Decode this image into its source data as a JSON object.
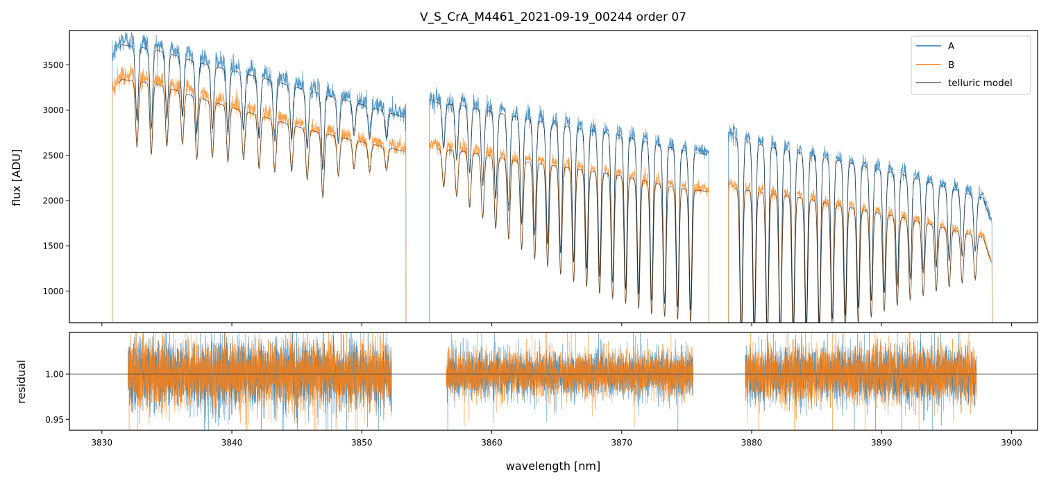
{
  "figure": {
    "title": "V_S_CrA_M4461_2021-09-19_00244  order 07"
  },
  "colors": {
    "A": "#1f77b4",
    "B": "#ff7f0e",
    "model": "#000000",
    "axes": "#000000",
    "hline": "#555555"
  },
  "chart_data": [
    {
      "type": "line",
      "id": "flux",
      "ylabel": "flux [ADU]",
      "xlim": [
        3827.5,
        3902
      ],
      "ylim": [
        650,
        3880
      ],
      "yticks": [
        1000,
        1500,
        2000,
        2500,
        3000,
        3500
      ],
      "ytick_labels": [
        "1000",
        "1500",
        "2000",
        "2500",
        "3000",
        "3500"
      ],
      "xticks": [
        3830,
        3840,
        3850,
        3860,
        3870,
        3880,
        3890,
        3900
      ],
      "legend": {
        "position": "top-right",
        "entries": [
          "A",
          "B",
          "telluric model"
        ]
      },
      "segments": [
        {
          "range": [
            3830.8,
            3853.4
          ],
          "A_anchor": [
            [
              3830.8,
              3600
            ],
            [
              3831.5,
              3780
            ],
            [
              3834,
              3730
            ],
            [
              3838,
              3560
            ],
            [
              3842,
              3420
            ],
            [
              3846,
              3260
            ],
            [
              3850,
              3110
            ],
            [
              3853.4,
              2960
            ]
          ],
          "B_anchor": [
            [
              3830.8,
              3230
            ],
            [
              3831.5,
              3390
            ],
            [
              3834,
              3350
            ],
            [
              3838,
              3160
            ],
            [
              3842,
              2990
            ],
            [
              3846,
              2820
            ],
            [
              3850,
              2690
            ],
            [
              3853.4,
              2580
            ]
          ],
          "lines": [
            3832.7,
            3833.8,
            3835.0,
            3836.2,
            3837.3,
            3838.5,
            3839.7,
            3840.9,
            3842.1,
            3843.3,
            3844.6,
            3845.8,
            3847.0,
            3848.2,
            3849.4,
            3850.6,
            3851.9
          ],
          "depth": [
            0.22,
            0.24,
            0.2,
            0.18,
            0.22,
            0.2,
            0.2,
            0.18,
            0.2,
            0.2,
            0.18,
            0.2,
            0.26,
            0.16,
            0.12,
            0.12,
            0.1
          ]
        },
        {
          "range": [
            3855.2,
            3876.7
          ],
          "A_anchor": [
            [
              3855.2,
              3140
            ],
            [
              3858,
              3090
            ],
            [
              3862,
              2970
            ],
            [
              3866,
              2860
            ],
            [
              3870,
              2760
            ],
            [
              3874,
              2620
            ],
            [
              3876.7,
              2540
            ]
          ],
          "B_anchor": [
            [
              3855.2,
              2620
            ],
            [
              3858,
              2580
            ],
            [
              3862,
              2480
            ],
            [
              3866,
              2400
            ],
            [
              3870,
              2310
            ],
            [
              3874,
              2180
            ],
            [
              3876.7,
              2130
            ]
          ],
          "lines": [
            3856.3,
            3857.3,
            3858.3,
            3859.3,
            3860.3,
            3861.3,
            3862.3,
            3863.3,
            3864.3,
            3865.3,
            3866.3,
            3867.3,
            3868.3,
            3869.3,
            3870.3,
            3871.3,
            3872.3,
            3873.3,
            3874.3,
            3875.3
          ],
          "depth": [
            0.16,
            0.2,
            0.24,
            0.28,
            0.32,
            0.36,
            0.4,
            0.44,
            0.47,
            0.5,
            0.53,
            0.55,
            0.58,
            0.6,
            0.62,
            0.64,
            0.66,
            0.67,
            0.68,
            0.69
          ]
        },
        {
          "range": [
            3878.2,
            3898.5
          ],
          "A_anchor": [
            [
              3878.2,
              2760
            ],
            [
              3880,
              2680
            ],
            [
              3884,
              2560
            ],
            [
              3888,
              2440
            ],
            [
              3892,
              2310
            ],
            [
              3896,
              2140
            ],
            [
              3897.8,
              2060
            ],
            [
              3898.5,
              1760
            ]
          ],
          "B_anchor": [
            [
              3878.2,
              2180
            ],
            [
              3880,
              2140
            ],
            [
              3884,
              2060
            ],
            [
              3888,
              1940
            ],
            [
              3892,
              1830
            ],
            [
              3896,
              1680
            ],
            [
              3897.8,
              1620
            ],
            [
              3898.5,
              1300
            ]
          ],
          "lines": [
            3879.2,
            3880.2,
            3881.2,
            3882.2,
            3883.2,
            3884.2,
            3885.2,
            3886.2,
            3887.2,
            3888.2,
            3889.2,
            3890.2,
            3891.2,
            3892.2,
            3893.2,
            3894.2,
            3895.2,
            3896.2,
            3897.2
          ],
          "depth": [
            0.8,
            0.8,
            0.8,
            0.78,
            0.78,
            0.76,
            0.74,
            0.72,
            0.7,
            0.66,
            0.62,
            0.58,
            0.54,
            0.5,
            0.46,
            0.42,
            0.38,
            0.34,
            0.3
          ]
        }
      ],
      "series": [
        {
          "name": "A",
          "color_key": "A"
        },
        {
          "name": "B",
          "color_key": "B"
        },
        {
          "name": "telluric model",
          "color_key": "model"
        }
      ]
    },
    {
      "type": "line",
      "id": "residual",
      "ylabel": "residual",
      "xlabel": "wavelength [nm]",
      "xlim": [
        3827.5,
        3902
      ],
      "ylim": [
        0.938,
        1.046
      ],
      "yticks": [
        0.95,
        1.0
      ],
      "ytick_labels": [
        "0.95",
        "1.00"
      ],
      "xticks": [
        3830,
        3840,
        3850,
        3860,
        3870,
        3880,
        3890,
        3900
      ],
      "xtick_labels": [
        "3830",
        "3840",
        "3850",
        "3860",
        "3870",
        "3880",
        "3890",
        "3900"
      ],
      "hline": 1.0,
      "segments": [
        {
          "range": [
            3832.0,
            3852.3
          ],
          "sigma": 0.018
        },
        {
          "range": [
            3856.5,
            3875.5
          ],
          "sigma": 0.012
        },
        {
          "range": [
            3879.5,
            3897.3
          ],
          "sigma": 0.015
        }
      ]
    }
  ]
}
